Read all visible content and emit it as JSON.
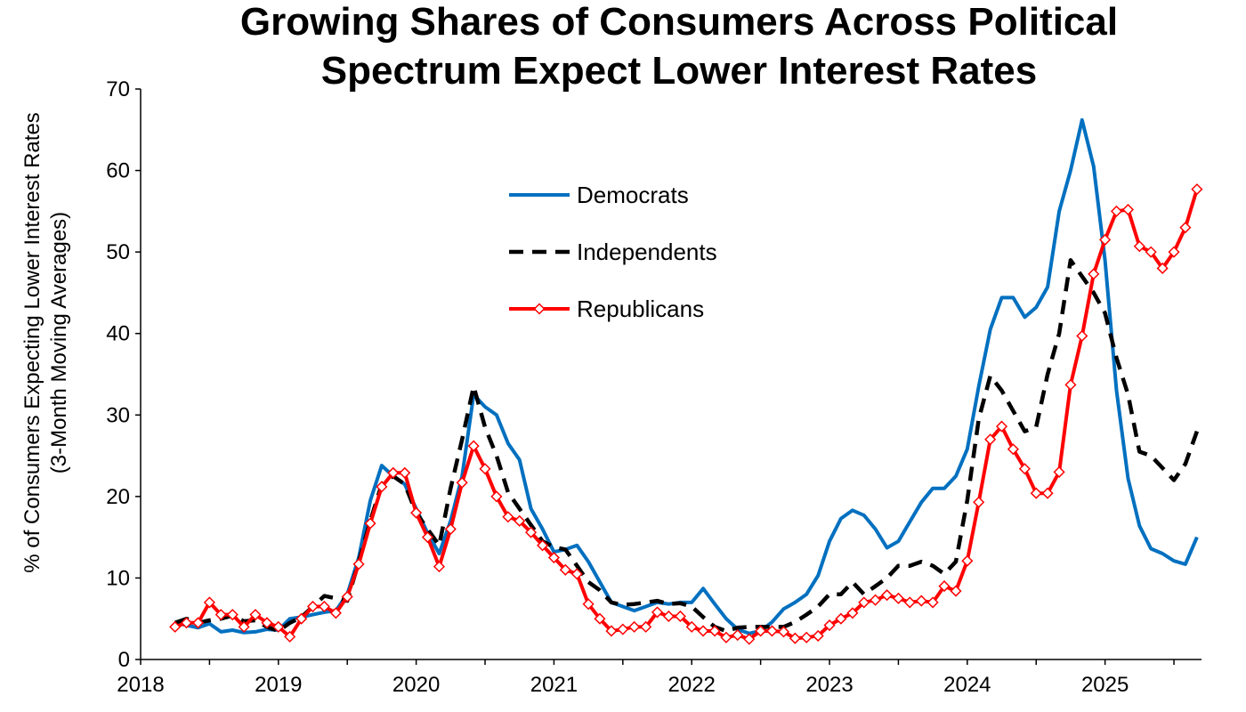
{
  "chart_data": {
    "type": "line",
    "title_lines": [
      "Growing Shares of Consumers Across Political",
      "Spectrum Expect Lower Interest Rates"
    ],
    "ylabel_lines": [
      "% of Consumers Expecting Lower Interest Rates",
      "(3-Month Moving Averages)"
    ],
    "xlabel": "",
    "ylim": [
      0,
      70
    ],
    "yticks": [
      "0",
      "10",
      "20",
      "30",
      "40",
      "50",
      "60",
      "70"
    ],
    "xlim": [
      2018,
      2025.7
    ],
    "xticks": [
      "2018",
      "2019",
      "2020",
      "2021",
      "2022",
      "2023",
      "2024",
      "2025"
    ],
    "grid": false,
    "legend_position": "upper-center",
    "x": [
      2018.25,
      2018.333,
      2018.417,
      2018.5,
      2018.583,
      2018.667,
      2018.75,
      2018.833,
      2018.917,
      2019.0,
      2019.083,
      2019.167,
      2019.25,
      2019.333,
      2019.417,
      2019.5,
      2019.583,
      2019.667,
      2019.75,
      2019.833,
      2019.917,
      2020.0,
      2020.083,
      2020.167,
      2020.25,
      2020.333,
      2020.417,
      2020.5,
      2020.583,
      2020.667,
      2020.75,
      2020.833,
      2020.917,
      2021.0,
      2021.083,
      2021.167,
      2021.25,
      2021.333,
      2021.417,
      2021.5,
      2021.583,
      2021.667,
      2021.75,
      2021.833,
      2021.917,
      2022.0,
      2022.083,
      2022.167,
      2022.25,
      2022.333,
      2022.417,
      2022.5,
      2022.583,
      2022.667,
      2022.75,
      2022.833,
      2022.917,
      2023.0,
      2023.083,
      2023.167,
      2023.25,
      2023.333,
      2023.417,
      2023.5,
      2023.583,
      2023.667,
      2023.75,
      2023.833,
      2023.917,
      2024.0,
      2024.083,
      2024.167,
      2024.25,
      2024.333,
      2024.417,
      2024.5,
      2024.583,
      2024.667,
      2024.75,
      2024.833,
      2024.917,
      2025.0,
      2025.083,
      2025.167,
      2025.25,
      2025.333,
      2025.417,
      2025.5,
      2025.583,
      2025.667
    ],
    "series": [
      {
        "name": "Democrats",
        "color": "#0070C0",
        "dash": "solid",
        "marker": "none",
        "values": [
          4.5,
          4.2,
          3.9,
          4.4,
          3.4,
          3.6,
          3.3,
          3.4,
          3.7,
          3.6,
          5.0,
          5.2,
          5.5,
          5.8,
          6.0,
          8.0,
          12.5,
          19.5,
          23.8,
          22.5,
          21.5,
          18.5,
          15.5,
          13.0,
          17.0,
          22.5,
          32.5,
          31.0,
          30.0,
          26.5,
          24.5,
          18.5,
          16.0,
          13.2,
          13.5,
          14.0,
          12.0,
          9.5,
          7.0,
          6.5,
          6.0,
          6.5,
          7.0,
          6.8,
          7.0,
          7.0,
          8.7,
          6.8,
          5.0,
          3.7,
          3.2,
          3.5,
          4.6,
          6.2,
          7.0,
          8.0,
          10.3,
          14.5,
          17.3,
          18.3,
          17.7,
          16.0,
          13.7,
          14.5,
          16.9,
          19.3,
          21.0,
          21.0,
          22.5,
          25.8,
          33.5,
          40.5,
          44.4,
          44.4,
          42.0,
          43.2,
          45.7,
          55.0,
          60.0,
          66.2,
          60.5,
          49.0,
          33.0,
          22.2,
          16.4,
          13.6,
          13.0,
          12.1,
          11.7,
          15.0
        ]
      },
      {
        "name": "Independents",
        "color": "#000000",
        "dash": "dashed",
        "marker": "none",
        "values": [
          4.5,
          5.0,
          4.5,
          4.8,
          5.0,
          5.4,
          4.7,
          4.8,
          4.0,
          3.5,
          4.5,
          5.2,
          6.5,
          7.8,
          7.5,
          7.2,
          12.0,
          17.0,
          21.5,
          22.5,
          21.5,
          18.0,
          16.0,
          14.0,
          21.0,
          27.0,
          33.5,
          28.5,
          25.0,
          20.5,
          18.5,
          16.5,
          14.5,
          13.8,
          13.5,
          11.5,
          9.5,
          8.5,
          7.0,
          6.7,
          6.8,
          7.0,
          7.2,
          6.8,
          6.9,
          6.5,
          5.2,
          4.0,
          3.5,
          3.9,
          4.0,
          4.0,
          4.0,
          4.0,
          4.6,
          5.5,
          6.5,
          8.0,
          8.0,
          9.5,
          8.0,
          9.0,
          10.0,
          11.5,
          11.5,
          12.0,
          11.5,
          10.5,
          12.0,
          19.5,
          29.5,
          34.8,
          33.0,
          30.5,
          28.0,
          28.5,
          35.0,
          40.0,
          49.0,
          47.0,
          45.0,
          42.5,
          37.0,
          32.5,
          25.5,
          25.0,
          23.5,
          22.0,
          24.0,
          28.0
        ]
      },
      {
        "name": "Republicans",
        "color": "#FF0000",
        "dash": "solid",
        "marker": "diamond",
        "values": [
          4.0,
          4.5,
          4.5,
          7.0,
          5.5,
          5.5,
          4.0,
          5.5,
          4.5,
          4.0,
          2.8,
          5.0,
          6.5,
          6.5,
          5.7,
          7.7,
          11.7,
          16.7,
          21.2,
          22.9,
          22.9,
          18.0,
          15.0,
          11.4,
          16.0,
          21.7,
          26.2,
          23.4,
          20.0,
          17.5,
          17.0,
          15.6,
          14.0,
          12.5,
          11.0,
          10.5,
          6.8,
          5.0,
          3.5,
          3.7,
          4.0,
          4.0,
          5.8,
          5.3,
          5.3,
          4.0,
          3.5,
          3.5,
          2.7,
          3.0,
          2.5,
          3.5,
          3.5,
          3.4,
          2.6,
          2.7,
          2.9,
          4.2,
          5.0,
          5.7,
          7.0,
          7.3,
          7.9,
          7.5,
          7.0,
          7.2,
          7.0,
          9.0,
          8.4,
          12.1,
          19.3,
          27.0,
          28.6,
          25.8,
          23.4,
          20.4,
          20.4,
          23.0,
          33.7,
          39.7,
          47.3,
          51.5,
          55.0,
          55.2,
          50.7,
          50.0,
          48.0,
          50.0,
          53.0,
          57.7
        ]
      }
    ]
  }
}
